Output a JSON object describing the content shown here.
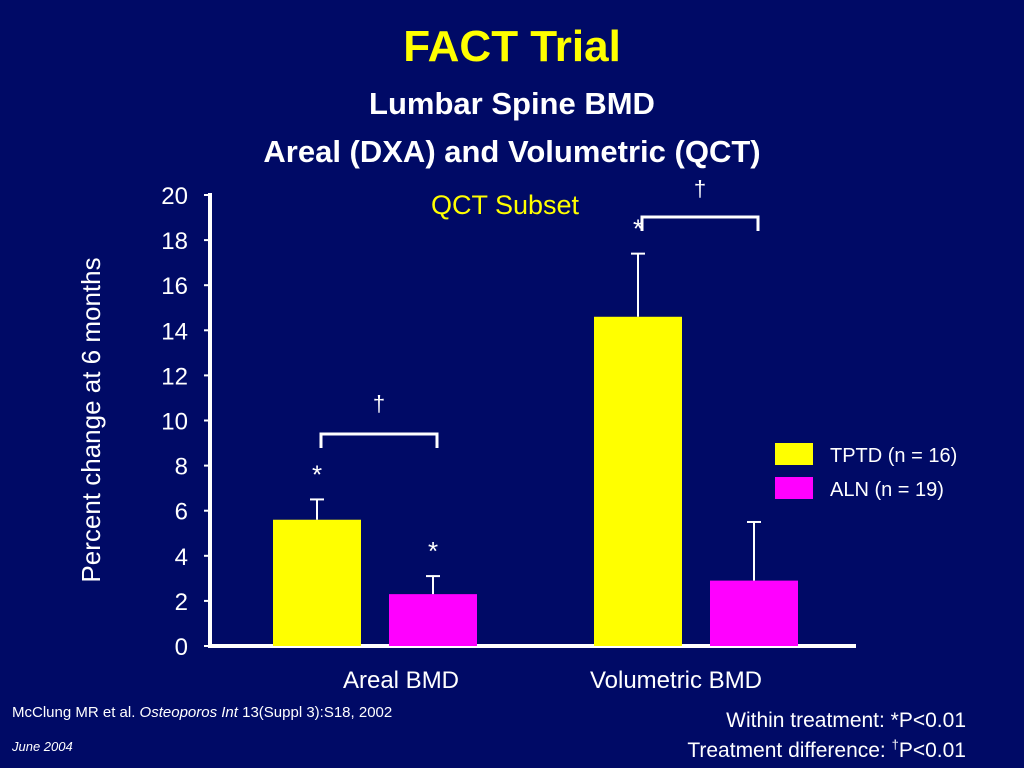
{
  "header": {
    "title": "FACT Trial",
    "subtitle_line1": "Lumbar Spine BMD",
    "subtitle_line2": "Areal (DXA) and Volumetric (QCT)"
  },
  "chart_data": {
    "type": "bar",
    "title": "",
    "annotation": "QCT Subset",
    "ylabel": "Percent change at 6 months",
    "xlabel": "",
    "categories": [
      "Areal BMD",
      "Volumetric BMD"
    ],
    "ylim": [
      0,
      20
    ],
    "yticks": [
      "0",
      "2",
      "4",
      "6",
      "8",
      "10",
      "12",
      "14",
      "16",
      "18",
      "20"
    ],
    "grid": false,
    "legend_position": "right",
    "series": [
      {
        "name": "TPTD (n = 16)",
        "color": "#ffff00",
        "values": [
          5.6,
          14.6
        ],
        "error": [
          0.9,
          2.8
        ],
        "markers": [
          "*",
          "*"
        ]
      },
      {
        "name": "ALN  (n = 19)",
        "color": "#ff00ff",
        "values": [
          2.3,
          2.9
        ],
        "error": [
          0.8,
          2.6
        ],
        "markers": [
          "*",
          ""
        ]
      }
    ],
    "comparison_marker": "†"
  },
  "footer": {
    "citation_authors": "McClung MR et al.",
    "citation_journal": "Osteoporos Int",
    "citation_ref": "13(Suppl 3):S18, 2002",
    "date": "June 2004",
    "note_within": "Within treatment: *P<0.01",
    "note_between_prefix": "Treatment difference:  ",
    "note_between_symbol": "†",
    "note_between_value": "P<0.01"
  },
  "colors": {
    "background": "#000a66",
    "title": "#ffff00",
    "annotation": "#ffff00",
    "axis": "#ffffff"
  }
}
